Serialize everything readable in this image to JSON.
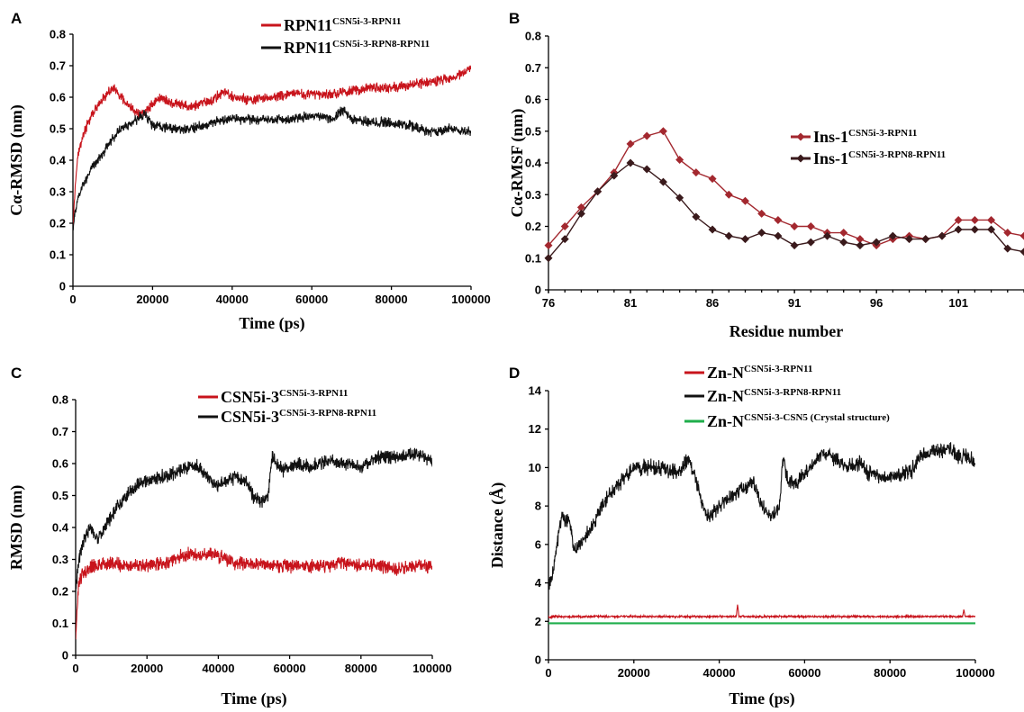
{
  "colors": {
    "red": "#c8141c",
    "black": "#111111",
    "green": "#1fae4b",
    "marker_red": "#a3282f",
    "marker_dark": "#3a1a1c"
  },
  "chart_data": [
    {
      "panel": "A",
      "type": "line",
      "title": "",
      "xlabel": "Time (ps)",
      "ylabel": "Cα-RMSD (nm)",
      "xlim": [
        0,
        100000
      ],
      "ylim": [
        0,
        0.8
      ],
      "x_ticks": [
        "0",
        "20000",
        "40000",
        "60000",
        "80000",
        "100000"
      ],
      "y_ticks": [
        "0",
        "0.1",
        "0.2",
        "0.3",
        "0.4",
        "0.5",
        "0.6",
        "0.7",
        "0.8"
      ],
      "legend_position": "top-right",
      "series": [
        {
          "name": "RPN11",
          "sup": "CSN5i-3-RPN11",
          "color": "red",
          "noise": 0.012,
          "x": [
            0,
            1000,
            2500,
            5000,
            8000,
            10000,
            12000,
            14000,
            16000,
            18000,
            20000,
            22000,
            25000,
            30000,
            35000,
            38000,
            40000,
            45000,
            50000,
            55000,
            60000,
            65000,
            70000,
            75000,
            80000,
            85000,
            90000,
            95000,
            100000
          ],
          "y": [
            0.2,
            0.4,
            0.48,
            0.55,
            0.6,
            0.63,
            0.6,
            0.57,
            0.55,
            0.55,
            0.58,
            0.6,
            0.58,
            0.57,
            0.59,
            0.62,
            0.6,
            0.59,
            0.6,
            0.61,
            0.61,
            0.61,
            0.62,
            0.63,
            0.63,
            0.64,
            0.65,
            0.66,
            0.69
          ]
        },
        {
          "name": "RPN11",
          "sup": "CSN5i-3-RPN8-RPN11",
          "color": "black",
          "noise": 0.012,
          "x": [
            0,
            1000,
            2500,
            5000,
            8000,
            10000,
            12000,
            15000,
            18000,
            20000,
            25000,
            30000,
            35000,
            40000,
            45000,
            50000,
            55000,
            60000,
            65000,
            68000,
            70000,
            75000,
            80000,
            85000,
            90000,
            95000,
            100000
          ],
          "y": [
            0.18,
            0.27,
            0.32,
            0.38,
            0.43,
            0.47,
            0.5,
            0.52,
            0.55,
            0.51,
            0.5,
            0.5,
            0.52,
            0.53,
            0.53,
            0.53,
            0.53,
            0.54,
            0.53,
            0.56,
            0.53,
            0.52,
            0.52,
            0.51,
            0.49,
            0.5,
            0.49
          ]
        }
      ]
    },
    {
      "panel": "B",
      "type": "line",
      "title": "",
      "xlabel": "Residue number",
      "ylabel": "Cα-RMSF (nm)",
      "xlim": [
        76,
        105
      ],
      "ylim": [
        0,
        0.8
      ],
      "x_ticks": [
        "76",
        "81",
        "86",
        "91",
        "96",
        "101"
      ],
      "y_ticks": [
        "0",
        "0.1",
        "0.2",
        "0.3",
        "0.4",
        "0.5",
        "0.6",
        "0.7",
        "0.8"
      ],
      "legend_position": "right",
      "series": [
        {
          "name": "Ins-1",
          "sup": "CSN5i-3-RPN11",
          "color": "marker_red",
          "markers": true,
          "x": [
            76,
            77,
            78,
            79,
            80,
            81,
            82,
            83,
            84,
            85,
            86,
            87,
            88,
            89,
            90,
            91,
            92,
            93,
            94,
            95,
            96,
            97,
            98,
            99,
            100,
            101,
            102,
            103,
            104,
            105
          ],
          "y": [
            0.14,
            0.2,
            0.26,
            0.31,
            0.37,
            0.46,
            0.485,
            0.5,
            0.41,
            0.37,
            0.35,
            0.3,
            0.28,
            0.24,
            0.22,
            0.2,
            0.2,
            0.18,
            0.18,
            0.16,
            0.14,
            0.16,
            0.17,
            0.16,
            0.17,
            0.22,
            0.22,
            0.22,
            0.18,
            0.17
          ]
        },
        {
          "name": "Ins-1",
          "sup": "CSN5i-3-RPN8-RPN11",
          "color": "marker_dark",
          "markers": true,
          "x": [
            76,
            77,
            78,
            79,
            80,
            81,
            82,
            83,
            84,
            85,
            86,
            87,
            88,
            89,
            90,
            91,
            92,
            93,
            94,
            95,
            96,
            97,
            98,
            99,
            100,
            101,
            102,
            103,
            104,
            105
          ],
          "y": [
            0.1,
            0.16,
            0.24,
            0.31,
            0.36,
            0.4,
            0.38,
            0.34,
            0.29,
            0.23,
            0.19,
            0.17,
            0.16,
            0.18,
            0.17,
            0.14,
            0.15,
            0.17,
            0.15,
            0.14,
            0.15,
            0.17,
            0.16,
            0.16,
            0.17,
            0.19,
            0.19,
            0.19,
            0.13,
            0.12
          ]
        }
      ]
    },
    {
      "panel": "C",
      "type": "line",
      "title": "",
      "xlabel": "Time (ps)",
      "ylabel": "RMSD (nm)",
      "xlim": [
        0,
        100000
      ],
      "ylim": [
        0,
        0.8
      ],
      "x_ticks": [
        "0",
        "20000",
        "40000",
        "60000",
        "80000",
        "100000"
      ],
      "y_ticks": [
        "0",
        "0.1",
        "0.2",
        "0.3",
        "0.4",
        "0.5",
        "0.6",
        "0.7",
        "0.8"
      ],
      "legend_position": "top-right",
      "series": [
        {
          "name": "CSN5i-3",
          "sup": "CSN5i-3-RPN11",
          "color": "red",
          "noise": 0.016,
          "x": [
            0,
            800,
            2000,
            5000,
            10000,
            15000,
            20000,
            25000,
            30000,
            33000,
            35000,
            38000,
            40000,
            45000,
            50000,
            55000,
            60000,
            65000,
            70000,
            75000,
            80000,
            85000,
            90000,
            95000,
            100000
          ],
          "y": [
            0.05,
            0.22,
            0.26,
            0.28,
            0.29,
            0.28,
            0.28,
            0.29,
            0.31,
            0.32,
            0.31,
            0.32,
            0.31,
            0.29,
            0.29,
            0.28,
            0.28,
            0.28,
            0.28,
            0.29,
            0.28,
            0.28,
            0.27,
            0.28,
            0.28
          ]
        },
        {
          "name": "CSN5i-3",
          "sup": "CSN5i-3-RPN8-RPN11",
          "color": "black",
          "noise": 0.016,
          "x": [
            0,
            1000,
            2000,
            4000,
            6000,
            8000,
            12000,
            16000,
            20000,
            25000,
            30000,
            33000,
            36000,
            40000,
            45000,
            48000,
            50000,
            52000,
            54000,
            55000,
            58000,
            62000,
            66000,
            70000,
            75000,
            80000,
            85000,
            90000,
            95000,
            100000
          ],
          "y": [
            0.2,
            0.3,
            0.35,
            0.4,
            0.36,
            0.4,
            0.47,
            0.52,
            0.55,
            0.56,
            0.58,
            0.6,
            0.57,
            0.53,
            0.56,
            0.54,
            0.49,
            0.48,
            0.5,
            0.62,
            0.58,
            0.6,
            0.59,
            0.61,
            0.6,
            0.59,
            0.62,
            0.62,
            0.63,
            0.61
          ]
        }
      ]
    },
    {
      "panel": "D",
      "type": "line",
      "title": "",
      "xlabel": "Time (ps)",
      "ylabel": "Distance (Å)",
      "xlim": [
        0,
        100000
      ],
      "ylim": [
        0,
        14
      ],
      "x_ticks": [
        "0",
        "20000",
        "40000",
        "60000",
        "80000",
        "100000"
      ],
      "y_ticks": [
        "0",
        "2",
        "4",
        "6",
        "8",
        "10",
        "12",
        "14"
      ],
      "legend_position": "top-right",
      "series": [
        {
          "name": "Zn-N",
          "sup": "CSN5i-3-RPN11",
          "color": "red",
          "noise": 0.04,
          "x": [
            0,
            1000,
            20000,
            40000,
            44000,
            44300,
            44600,
            60000,
            80000,
            97000,
            97300,
            97600,
            100000
          ],
          "y": [
            2.2,
            2.25,
            2.25,
            2.25,
            2.25,
            2.9,
            2.25,
            2.25,
            2.25,
            2.25,
            2.6,
            2.25,
            2.25
          ]
        },
        {
          "name": "Zn-N",
          "sup": "CSN5i-3-RPN8-RPN11",
          "color": "black",
          "noise": 0.3,
          "x": [
            0,
            1000,
            2000,
            3000,
            5000,
            6000,
            8000,
            10000,
            12000,
            15000,
            18000,
            20000,
            25000,
            30000,
            33000,
            35000,
            37000,
            40000,
            45000,
            48000,
            50000,
            52000,
            54000,
            55000,
            56000,
            58000,
            62000,
            64000,
            66000,
            70000,
            73000,
            75000,
            80000,
            85000,
            87000,
            90000,
            94000,
            96000,
            98000,
            100000
          ],
          "y": [
            3.8,
            4.5,
            6.0,
            7.5,
            7.2,
            5.6,
            6.2,
            6.8,
            7.8,
            8.8,
            9.5,
            10.0,
            10.0,
            9.8,
            10.4,
            9.0,
            7.4,
            8.0,
            8.8,
            9.2,
            8.0,
            7.4,
            7.8,
            10.5,
            9.3,
            9.2,
            10.2,
            10.8,
            10.6,
            10.0,
            10.2,
            9.7,
            9.5,
            9.8,
            10.6,
            10.8,
            11.0,
            10.5,
            10.6,
            10.3
          ]
        },
        {
          "name": "Zn-N",
          "sup": "CSN5i-3-CSN5 (Crystal structure)",
          "color": "green",
          "noise": 0,
          "x": [
            0,
            100000
          ],
          "y": [
            1.9,
            1.9
          ]
        }
      ]
    }
  ]
}
